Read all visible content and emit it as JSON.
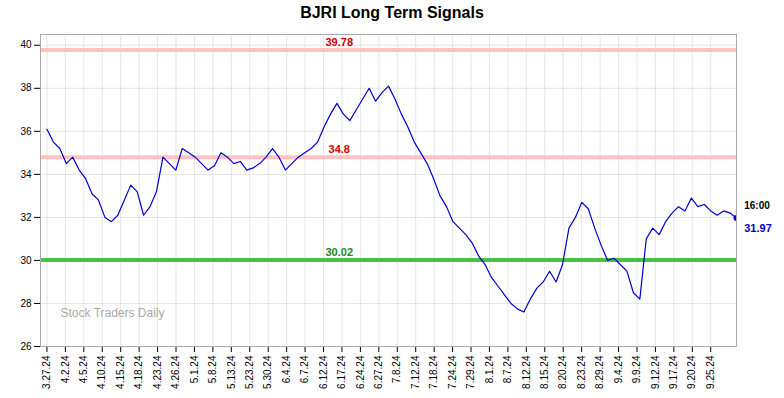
{
  "chart_data": {
    "type": "line",
    "title": "BJRI Long Term Signals",
    "color": "#0000cc",
    "values": [
      36.1,
      35.5,
      35.2,
      34.5,
      34.8,
      34.2,
      33.8,
      33.1,
      32.8,
      32.0,
      31.8,
      32.1,
      32.8,
      33.5,
      33.2,
      32.1,
      32.5,
      33.2,
      34.8,
      34.5,
      34.2,
      35.2,
      35.0,
      34.8,
      34.5,
      34.2,
      34.4,
      35.0,
      34.8,
      34.5,
      34.6,
      34.2,
      34.3,
      34.5,
      34.8,
      35.2,
      34.8,
      34.2,
      34.5,
      34.8,
      35.0,
      35.2,
      35.5,
      36.2,
      36.8,
      37.3,
      36.8,
      36.5,
      37.0,
      37.5,
      38.0,
      37.4,
      37.8,
      38.1,
      37.5,
      36.8,
      36.2,
      35.5,
      35.0,
      34.5,
      33.8,
      33.0,
      32.5,
      31.8,
      31.5,
      31.2,
      30.8,
      30.2,
      29.8,
      29.2,
      28.8,
      28.4,
      28.0,
      27.75,
      27.6,
      28.2,
      28.7,
      29.0,
      29.5,
      29.0,
      29.8,
      31.5,
      32.0,
      32.7,
      32.4,
      31.5,
      30.7,
      30.0,
      30.1,
      29.8,
      29.5,
      28.5,
      28.2,
      31.0,
      31.5,
      31.2,
      31.8,
      32.2,
      32.5,
      32.3,
      32.9,
      32.5,
      32.6,
      32.3,
      32.1,
      32.3,
      32.2,
      31.97
    ],
    "xlim": [
      -1,
      107
    ],
    "xticks": [
      {
        "value": 0,
        "label": "3.27.24"
      },
      {
        "value": 2.861111,
        "label": "4.2.24"
      },
      {
        "value": 5.722222,
        "label": "4.5.24"
      },
      {
        "value": 8.583333,
        "label": "4.10.24"
      },
      {
        "value": 11.444444,
        "label": "4.15.24"
      },
      {
        "value": 14.305556,
        "label": "4.18.24"
      },
      {
        "value": 17.166667,
        "label": "4.23.24"
      },
      {
        "value": 20.027778,
        "label": "4.26.24"
      },
      {
        "value": 22.888889,
        "label": "5.1.24"
      },
      {
        "value": 25.75,
        "label": "5.8.24"
      },
      {
        "value": 28.611111,
        "label": "5.13.24"
      },
      {
        "value": 31.472222,
        "label": "5.23.24"
      },
      {
        "value": 34.333333,
        "label": "5.30.24"
      },
      {
        "value": 37.194444,
        "label": "6.4.24"
      },
      {
        "value": 40.055556,
        "label": "6.7.24"
      },
      {
        "value": 42.916667,
        "label": "6.12.24"
      },
      {
        "value": 45.777778,
        "label": "6.17.24"
      },
      {
        "value": 48.638889,
        "label": "6.24.24"
      },
      {
        "value": 51.5,
        "label": "6.27.24"
      },
      {
        "value": 54.361111,
        "label": "7.8.24"
      },
      {
        "value": 57.222222,
        "label": "7.12.24"
      },
      {
        "value": 60.083333,
        "label": "7.18.24"
      },
      {
        "value": 62.944444,
        "label": "7.24.24"
      },
      {
        "value": 65.805556,
        "label": "7.29.24"
      },
      {
        "value": 68.666667,
        "label": "8.1.24"
      },
      {
        "value": 71.527778,
        "label": "8.7.24"
      },
      {
        "value": 74.388889,
        "label": "8.12.24"
      },
      {
        "value": 77.25,
        "label": "8.15.24"
      },
      {
        "value": 80.111111,
        "label": "8.20.24"
      },
      {
        "value": 82.972222,
        "label": "8.23.24"
      },
      {
        "value": 85.833333,
        "label": "8.29.24"
      },
      {
        "value": 88.694444,
        "label": "9.4.24"
      },
      {
        "value": 91.555556,
        "label": "9.9.24"
      },
      {
        "value": 94.416667,
        "label": "9.12.24"
      },
      {
        "value": 97.277778,
        "label": "9.17.24"
      },
      {
        "value": 100.138889,
        "label": "9.20.24"
      },
      {
        "value": 103,
        "label": "9.25.24"
      }
    ],
    "ylim": [
      26,
      40.5
    ],
    "yticks": [
      26,
      28,
      30,
      32,
      34,
      36,
      38,
      40
    ],
    "grid": true,
    "reference_lines": [
      {
        "value": 39.78,
        "label": "39.78",
        "color": "#ffbbbb",
        "label_color": "#cc0000"
      },
      {
        "value": 34.8,
        "label": "34.8",
        "color": "#ffbbbb",
        "label_color": "#cc0000"
      },
      {
        "value": 30.02,
        "label": "30.02",
        "color": "#33bb33",
        "label_color": "#228822"
      }
    ],
    "end_point": {
      "value": 31.97,
      "label": "31.97",
      "time": "16:00"
    },
    "watermark": "Stock Traders Daily"
  }
}
